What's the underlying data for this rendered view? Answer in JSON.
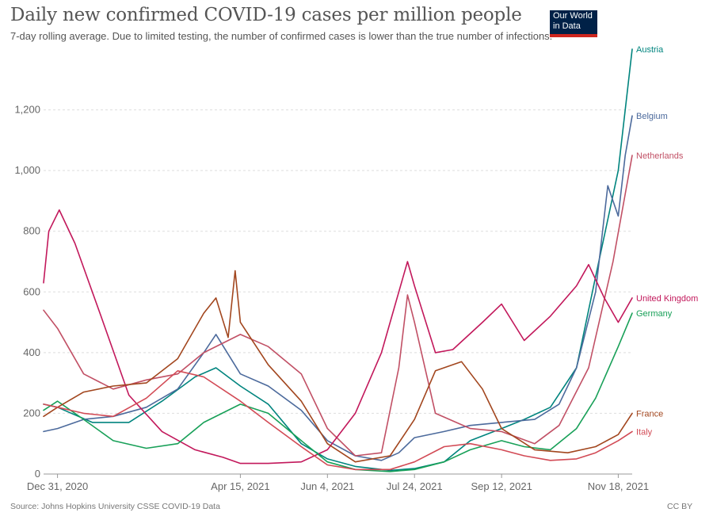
{
  "header": {
    "title": "Daily new confirmed COVID-19 cases per million people",
    "subtitle": "7-day rolling average. Due to limited testing, the number of confirmed cases is lower than the true number of infections.",
    "logo_line1": "Our World",
    "logo_line2": "in Data"
  },
  "footer": {
    "source": "Source: Johns Hopkins University CSSE COVID-19 Data",
    "license": "CC BY"
  },
  "chart_data": {
    "type": "line",
    "title": "Daily new confirmed COVID-19 cases per million people",
    "xlabel": "",
    "ylabel": "",
    "x_range": [
      "2020-12-23",
      "2021-11-26"
    ],
    "ylim": [
      0,
      1400
    ],
    "y_ticks": [
      0,
      200,
      400,
      600,
      800,
      1000,
      1200
    ],
    "y_tick_labels": [
      "0",
      "200",
      "400",
      "600",
      "800",
      "1,000",
      "1,200"
    ],
    "x_ticks": [
      "2020-12-31",
      "2021-04-15",
      "2021-06-04",
      "2021-07-24",
      "2021-09-12",
      "2021-11-18"
    ],
    "x_tick_labels": [
      "Dec 31, 2020",
      "Apr 15, 2021",
      "Jun 4, 2021",
      "Jul 24, 2021",
      "Sep 12, 2021",
      "Nov 18, 2021"
    ],
    "grid": "horizontal dashed",
    "legend": "inline labels at right end of lines",
    "series": [
      {
        "name": "Austria",
        "color": "#00847e",
        "points": [
          [
            "2020-12-23",
            230
          ],
          [
            "2020-12-31",
            220
          ],
          [
            "2021-01-20",
            170
          ],
          [
            "2021-02-10",
            170
          ],
          [
            "2021-03-01",
            240
          ],
          [
            "2021-03-20",
            320
          ],
          [
            "2021-04-01",
            350
          ],
          [
            "2021-04-15",
            290
          ],
          [
            "2021-05-01",
            230
          ],
          [
            "2021-05-20",
            100
          ],
          [
            "2021-06-04",
            50
          ],
          [
            "2021-06-20",
            25
          ],
          [
            "2021-07-10",
            12
          ],
          [
            "2021-07-24",
            18
          ],
          [
            "2021-08-10",
            40
          ],
          [
            "2021-08-25",
            110
          ],
          [
            "2021-09-12",
            150
          ],
          [
            "2021-09-25",
            180
          ],
          [
            "2021-10-10",
            220
          ],
          [
            "2021-10-25",
            350
          ],
          [
            "2021-11-05",
            650
          ],
          [
            "2021-11-18",
            1000
          ],
          [
            "2021-11-26",
            1400
          ]
        ]
      },
      {
        "name": "Belgium",
        "color": "#4c6a9c",
        "points": [
          [
            "2020-12-23",
            140
          ],
          [
            "2020-12-31",
            150
          ],
          [
            "2021-01-15",
            180
          ],
          [
            "2021-02-01",
            190
          ],
          [
            "2021-02-20",
            220
          ],
          [
            "2021-03-10",
            280
          ],
          [
            "2021-03-25",
            400
          ],
          [
            "2021-04-01",
            460
          ],
          [
            "2021-04-15",
            330
          ],
          [
            "2021-05-01",
            290
          ],
          [
            "2021-05-20",
            210
          ],
          [
            "2021-06-04",
            110
          ],
          [
            "2021-06-20",
            60
          ],
          [
            "2021-07-05",
            45
          ],
          [
            "2021-07-15",
            70
          ],
          [
            "2021-07-24",
            120
          ],
          [
            "2021-08-10",
            140
          ],
          [
            "2021-08-25",
            160
          ],
          [
            "2021-09-12",
            170
          ],
          [
            "2021-10-01",
            180
          ],
          [
            "2021-10-15",
            230
          ],
          [
            "2021-10-25",
            350
          ],
          [
            "2021-11-05",
            600
          ],
          [
            "2021-11-12",
            950
          ],
          [
            "2021-11-18",
            850
          ],
          [
            "2021-11-22",
            1050
          ],
          [
            "2021-11-26",
            1180
          ]
        ]
      },
      {
        "name": "Netherlands",
        "color": "#c15065",
        "points": [
          [
            "2020-12-23",
            540
          ],
          [
            "2020-12-31",
            480
          ],
          [
            "2021-01-15",
            330
          ],
          [
            "2021-02-01",
            280
          ],
          [
            "2021-02-20",
            310
          ],
          [
            "2021-03-10",
            330
          ],
          [
            "2021-03-25",
            400
          ],
          [
            "2021-04-15",
            460
          ],
          [
            "2021-05-01",
            420
          ],
          [
            "2021-05-20",
            330
          ],
          [
            "2021-06-04",
            150
          ],
          [
            "2021-06-20",
            60
          ],
          [
            "2021-07-05",
            70
          ],
          [
            "2021-07-15",
            350
          ],
          [
            "2021-07-20",
            590
          ],
          [
            "2021-07-24",
            500
          ],
          [
            "2021-08-05",
            200
          ],
          [
            "2021-08-25",
            150
          ],
          [
            "2021-09-12",
            140
          ],
          [
            "2021-10-01",
            100
          ],
          [
            "2021-10-15",
            160
          ],
          [
            "2021-11-01",
            350
          ],
          [
            "2021-11-15",
            700
          ],
          [
            "2021-11-26",
            1050
          ]
        ]
      },
      {
        "name": "United Kingdom",
        "color": "#c2185b",
        "points": [
          [
            "2020-12-23",
            630
          ],
          [
            "2020-12-26",
            800
          ],
          [
            "2021-01-01",
            870
          ],
          [
            "2021-01-10",
            760
          ],
          [
            "2021-01-25",
            520
          ],
          [
            "2021-02-10",
            260
          ],
          [
            "2021-03-01",
            140
          ],
          [
            "2021-03-20",
            80
          ],
          [
            "2021-04-05",
            55
          ],
          [
            "2021-04-15",
            35
          ],
          [
            "2021-05-01",
            35
          ],
          [
            "2021-05-20",
            40
          ],
          [
            "2021-06-04",
            80
          ],
          [
            "2021-06-20",
            200
          ],
          [
            "2021-07-05",
            400
          ],
          [
            "2021-07-15",
            600
          ],
          [
            "2021-07-20",
            700
          ],
          [
            "2021-07-24",
            620
          ],
          [
            "2021-08-05",
            400
          ],
          [
            "2021-08-15",
            410
          ],
          [
            "2021-09-01",
            500
          ],
          [
            "2021-09-12",
            560
          ],
          [
            "2021-09-25",
            440
          ],
          [
            "2021-10-10",
            520
          ],
          [
            "2021-10-25",
            620
          ],
          [
            "2021-11-01",
            690
          ],
          [
            "2021-11-10",
            580
          ],
          [
            "2021-11-18",
            500
          ],
          [
            "2021-11-26",
            580
          ]
        ]
      },
      {
        "name": "Germany",
        "color": "#18a058",
        "points": [
          [
            "2020-12-23",
            210
          ],
          [
            "2020-12-31",
            240
          ],
          [
            "2021-01-15",
            180
          ],
          [
            "2021-02-01",
            110
          ],
          [
            "2021-02-20",
            85
          ],
          [
            "2021-03-10",
            100
          ],
          [
            "2021-03-25",
            170
          ],
          [
            "2021-04-15",
            230
          ],
          [
            "2021-05-01",
            200
          ],
          [
            "2021-05-20",
            110
          ],
          [
            "2021-06-04",
            40
          ],
          [
            "2021-06-20",
            15
          ],
          [
            "2021-07-10",
            8
          ],
          [
            "2021-07-24",
            15
          ],
          [
            "2021-08-10",
            40
          ],
          [
            "2021-08-25",
            80
          ],
          [
            "2021-09-12",
            110
          ],
          [
            "2021-09-25",
            90
          ],
          [
            "2021-10-10",
            80
          ],
          [
            "2021-10-25",
            150
          ],
          [
            "2021-11-05",
            250
          ],
          [
            "2021-11-18",
            420
          ],
          [
            "2021-11-26",
            530
          ]
        ]
      },
      {
        "name": "France",
        "color": "#a2461e",
        "points": [
          [
            "2020-12-23",
            190
          ],
          [
            "2020-12-31",
            220
          ],
          [
            "2021-01-15",
            270
          ],
          [
            "2021-02-01",
            290
          ],
          [
            "2021-02-20",
            300
          ],
          [
            "2021-03-10",
            380
          ],
          [
            "2021-03-25",
            530
          ],
          [
            "2021-04-01",
            580
          ],
          [
            "2021-04-08",
            450
          ],
          [
            "2021-04-12",
            670
          ],
          [
            "2021-04-15",
            500
          ],
          [
            "2021-05-01",
            360
          ],
          [
            "2021-05-20",
            240
          ],
          [
            "2021-06-04",
            100
          ],
          [
            "2021-06-20",
            40
          ],
          [
            "2021-07-10",
            60
          ],
          [
            "2021-07-24",
            180
          ],
          [
            "2021-08-05",
            340
          ],
          [
            "2021-08-20",
            370
          ],
          [
            "2021-09-01",
            280
          ],
          [
            "2021-09-12",
            150
          ],
          [
            "2021-10-01",
            80
          ],
          [
            "2021-10-20",
            70
          ],
          [
            "2021-11-05",
            90
          ],
          [
            "2021-11-18",
            130
          ],
          [
            "2021-11-26",
            200
          ]
        ]
      },
      {
        "name": "Italy",
        "color": "#d24a55",
        "points": [
          [
            "2020-12-23",
            230
          ],
          [
            "2020-12-31",
            220
          ],
          [
            "2021-01-15",
            200
          ],
          [
            "2021-02-01",
            190
          ],
          [
            "2021-02-20",
            250
          ],
          [
            "2021-03-10",
            340
          ],
          [
            "2021-03-25",
            320
          ],
          [
            "2021-04-15",
            240
          ],
          [
            "2021-05-01",
            170
          ],
          [
            "2021-05-20",
            90
          ],
          [
            "2021-06-04",
            30
          ],
          [
            "2021-06-20",
            15
          ],
          [
            "2021-07-10",
            15
          ],
          [
            "2021-07-24",
            40
          ],
          [
            "2021-08-10",
            90
          ],
          [
            "2021-08-25",
            100
          ],
          [
            "2021-09-12",
            80
          ],
          [
            "2021-09-25",
            60
          ],
          [
            "2021-10-10",
            45
          ],
          [
            "2021-10-25",
            50
          ],
          [
            "2021-11-05",
            70
          ],
          [
            "2021-11-18",
            110
          ],
          [
            "2021-11-26",
            140
          ]
        ]
      }
    ]
  }
}
